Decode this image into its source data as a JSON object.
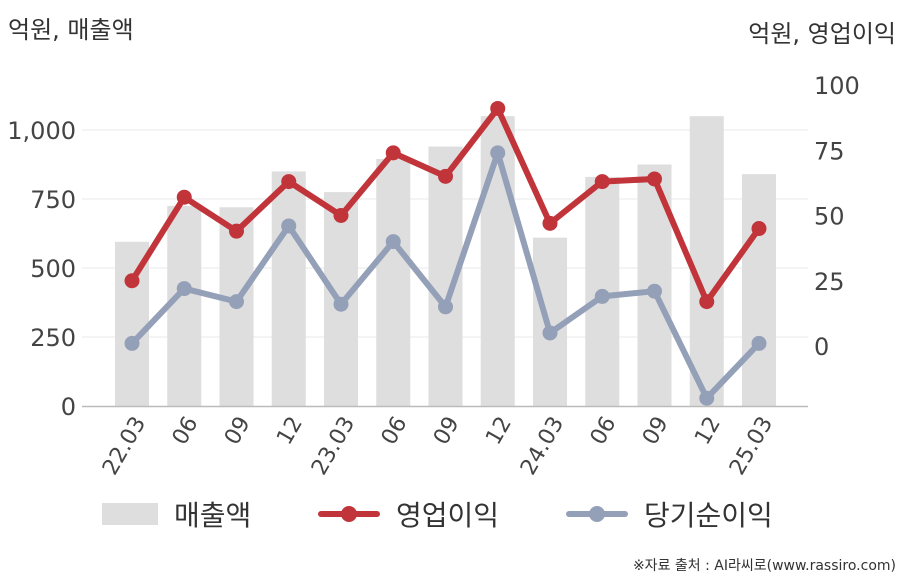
{
  "units": {
    "left": "억원, 매출액",
    "right": "억원, 영업이익"
  },
  "legend": {
    "revenue": "매출액",
    "operating_profit": "영업이익",
    "net_profit": "당기순이익"
  },
  "source": "※자료 출처 : AI라씨로(www.rassiro.com)",
  "colors": {
    "bar": "#dedede",
    "operating_profit": "#c0343a",
    "net_profit": "#94a0b8",
    "grid": "#e8e8e8",
    "axis": "#bbbbbb"
  },
  "chart_data": {
    "type": "bar",
    "categories": [
      "22.03",
      "06",
      "09",
      "12",
      "23.03",
      "06",
      "09",
      "12",
      "24.03",
      "06",
      "09",
      "12",
      "25.03"
    ],
    "series": [
      {
        "name": "매출액",
        "type": "bar",
        "axis": "left",
        "values": [
          595,
          725,
          720,
          850,
          775,
          895,
          940,
          1050,
          610,
          830,
          875,
          1050,
          840
        ]
      },
      {
        "name": "영업이익",
        "type": "line",
        "axis": "right",
        "values": [
          25,
          57,
          44,
          63,
          50,
          74,
          65,
          91,
          47,
          63,
          64,
          17,
          45
        ]
      },
      {
        "name": "당기순이익",
        "type": "line",
        "axis": "right",
        "values": [
          1,
          22,
          17,
          46,
          16,
          40,
          15,
          74,
          5,
          19,
          21,
          -20,
          1
        ]
      }
    ],
    "y_left": {
      "min": 0,
      "max": 1250,
      "ticks": [
        "0",
        "250",
        "500",
        "750",
        "1,000"
      ],
      "tick_values": [
        0,
        250,
        500,
        750,
        1000
      ]
    },
    "y_right": {
      "min": -25,
      "max": 100,
      "ticks": [
        "0",
        "25",
        "50",
        "75",
        "100"
      ],
      "tick_values": [
        0,
        25,
        50,
        75,
        100
      ]
    },
    "grid": true,
    "legend_position": "bottom"
  }
}
